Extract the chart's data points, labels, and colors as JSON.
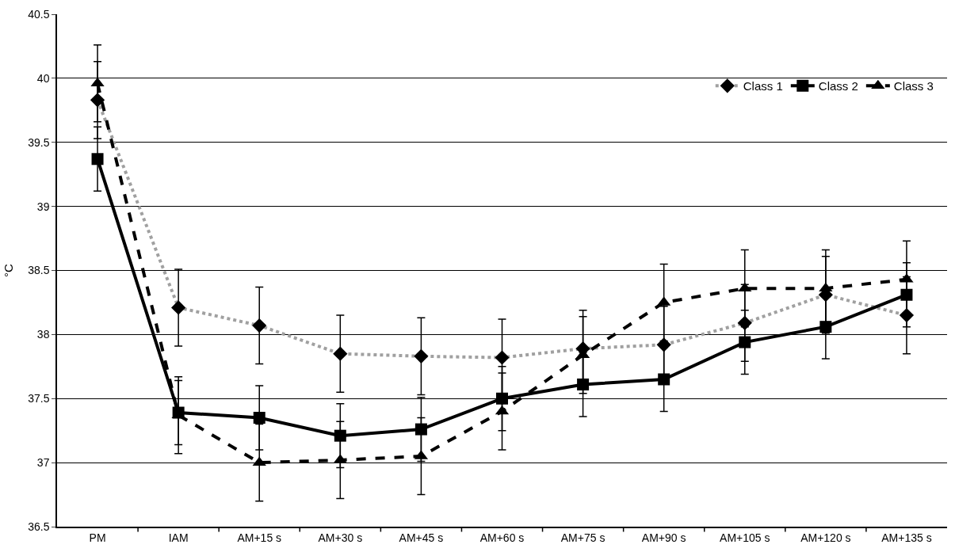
{
  "chart_data": {
    "type": "line",
    "ylabel": "°C",
    "categories": [
      "PM",
      "IAM",
      "AM+15 s",
      "AM+30 s",
      "AM+45 s",
      "AM+60 s",
      "AM+75 s",
      "AM+90 s",
      "AM+105 s",
      "AM+120 s",
      "AM+135 s"
    ],
    "series": [
      {
        "name": "Class 1",
        "color": "#a0a0a0",
        "marker": "diamond",
        "line_style": "dotted",
        "values": [
          39.83,
          38.21,
          38.07,
          37.85,
          37.83,
          37.82,
          37.89,
          37.92,
          38.09,
          38.31,
          38.15
        ],
        "errors": [
          0.3,
          0.3,
          0.3,
          0.3,
          0.3,
          0.3,
          0.3,
          0.3,
          0.3,
          0.3,
          0.3
        ]
      },
      {
        "name": "Class 2",
        "color": "#000000",
        "marker": "square",
        "line_style": "solid",
        "values": [
          39.37,
          37.39,
          37.35,
          37.21,
          37.26,
          37.5,
          37.61,
          37.65,
          37.94,
          38.06,
          38.31
        ],
        "errors": [
          0.25,
          0.25,
          0.25,
          0.25,
          0.25,
          0.25,
          0.25,
          0.25,
          0.25,
          0.25,
          0.25
        ]
      },
      {
        "name": "Class 3",
        "color": "#000000",
        "marker": "triangle",
        "line_style": "dashed",
        "values": [
          39.96,
          37.37,
          37.0,
          37.02,
          37.05,
          37.4,
          37.84,
          38.25,
          38.36,
          38.36,
          38.43
        ],
        "errors": [
          0.3,
          0.3,
          0.3,
          0.3,
          0.3,
          0.3,
          0.3,
          0.3,
          0.3,
          0.3,
          0.3
        ]
      }
    ],
    "ylim": [
      36.5,
      40.5
    ],
    "yticks": [
      36.5,
      37,
      37.5,
      38,
      38.5,
      39,
      39.5,
      40,
      40.5
    ],
    "grid": "y",
    "legend": "top right"
  }
}
